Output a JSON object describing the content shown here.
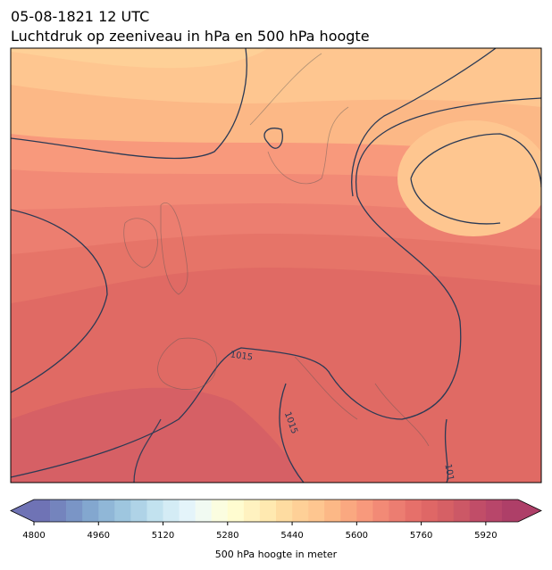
{
  "header": {
    "date": "05-08-1821 12 UTC",
    "title": "Luchtdruk op zeeniveau in hPa en 500 hPa hoogte"
  },
  "map": {
    "contour_labels": [
      "1015",
      "1015",
      "101"
    ]
  },
  "colorbar": {
    "label": "500 hPa hoogte in meter",
    "lim": [
      4800,
      6000
    ],
    "ticks": [
      4800,
      4960,
      5120,
      5280,
      5440,
      5600,
      5760,
      5920
    ],
    "colors": [
      "#6f73b5",
      "#7484bd",
      "#7a95c6",
      "#83a7cf",
      "#90b7d7",
      "#9ec6df",
      "#afd3e7",
      "#c2e2ef",
      "#d4ecf5",
      "#e4f4fa",
      "#f1faf2",
      "#fbfde0",
      "#fffcd0",
      "#fff2c0",
      "#ffe9b0",
      "#fedca1",
      "#fed097",
      "#fec690",
      "#fcb886",
      "#faa880",
      "#f8997c",
      "#f28a76",
      "#ec7d71",
      "#e6706a",
      "#df6766",
      "#d66065",
      "#cc5866",
      "#c14d68",
      "#b8466a",
      "#ae3f68"
    ]
  }
}
